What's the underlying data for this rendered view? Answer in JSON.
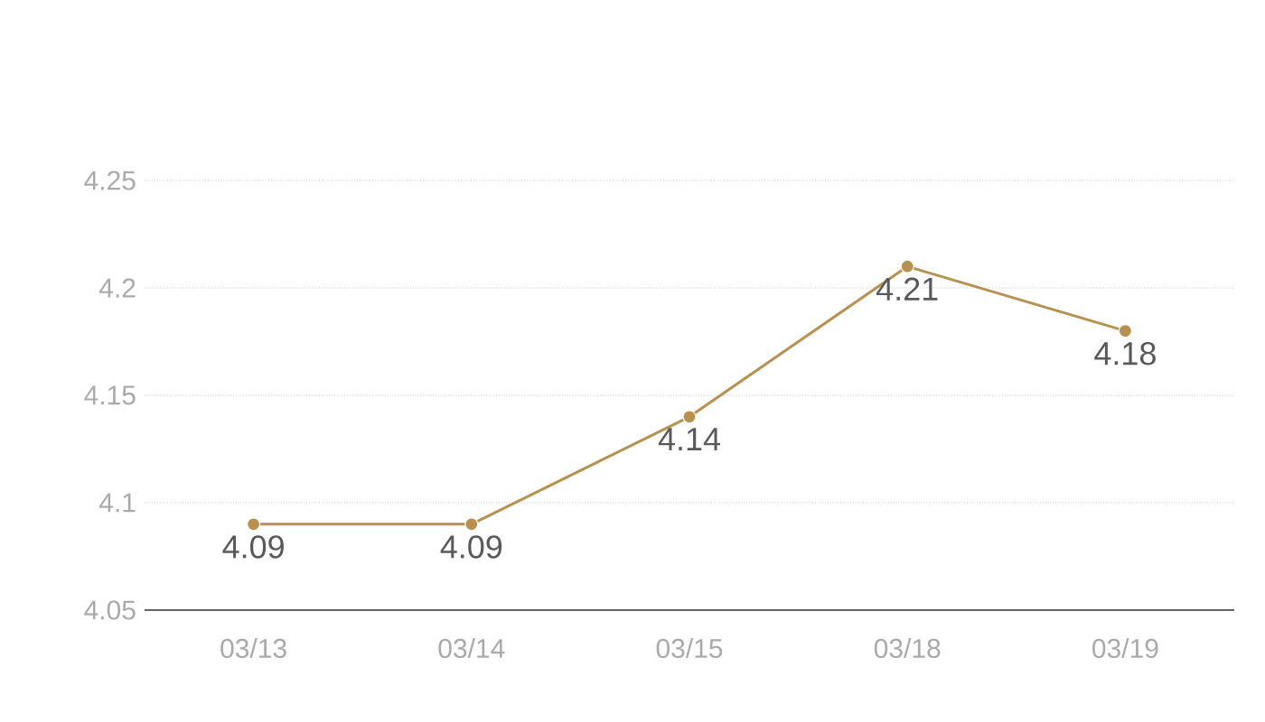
{
  "chart_data": {
    "type": "line",
    "categories": [
      "03/13",
      "03/14",
      "03/15",
      "03/18",
      "03/19"
    ],
    "values": [
      4.09,
      4.09,
      4.14,
      4.21,
      4.18
    ],
    "color": "#b8904f",
    "ylim": [
      4.05,
      4.25
    ],
    "yticks": [
      4.05,
      4.1,
      4.15,
      4.2,
      4.25
    ],
    "grid": "y",
    "marker": "circle",
    "line_style": "solid",
    "data_labels": true
  }
}
